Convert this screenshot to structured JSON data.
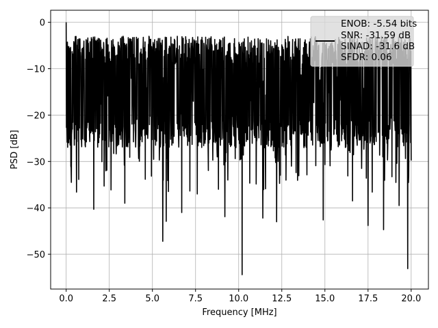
{
  "chart_data": {
    "type": "line",
    "title": "",
    "xlabel": "Frequency [MHz]",
    "ylabel": "PSD [dB]",
    "xlim": [
      -0.9,
      21.0
    ],
    "ylim": [
      -57.5,
      2.6
    ],
    "xticks": [
      0.0,
      2.5,
      5.0,
      7.5,
      10.0,
      12.5,
      15.0,
      17.5,
      20.0
    ],
    "xtick_labels": [
      "0.0",
      "2.5",
      "5.0",
      "7.5",
      "10.0",
      "12.5",
      "15.0",
      "17.5",
      "20.0"
    ],
    "yticks": [
      0,
      -10,
      -20,
      -30,
      -40,
      -50
    ],
    "ytick_labels": [
      "0",
      "−10",
      "−20",
      "−30",
      "−40",
      "−50"
    ],
    "grid": true,
    "legend_position": "top-right",
    "series": [
      {
        "name": "ENOB: -5.54 bits\nSNR: -31.59 dB\nSINAD: -31.6 dB\nSFDR: 0.06",
        "color": "#000000",
        "description_shape": "dense noise floor fluctuating roughly between -5 dB and -27 dB across 0-20 MHz",
        "x_range": [
          0.0,
          20.0
        ],
        "upper_envelope_approx": -3,
        "lower_envelope_approx": -27,
        "peak": {
          "x": 0.0,
          "y": 0.0
        },
        "notable_dips": [
          {
            "x": 0.3,
            "y": -34.5
          },
          {
            "x": 0.6,
            "y": -36.6
          },
          {
            "x": 1.6,
            "y": -40.3
          },
          {
            "x": 2.2,
            "y": -35.3
          },
          {
            "x": 3.4,
            "y": -39.0
          },
          {
            "x": 5.6,
            "y": -47.2
          },
          {
            "x": 5.8,
            "y": -42.9
          },
          {
            "x": 6.7,
            "y": -41.0
          },
          {
            "x": 7.6,
            "y": -37.0
          },
          {
            "x": 9.2,
            "y": -41.9
          },
          {
            "x": 10.2,
            "y": -54.4
          },
          {
            "x": 11.4,
            "y": -42.2
          },
          {
            "x": 12.2,
            "y": -43.0
          },
          {
            "x": 14.9,
            "y": -42.6
          },
          {
            "x": 16.6,
            "y": -38.5
          },
          {
            "x": 17.5,
            "y": -43.8
          },
          {
            "x": 18.4,
            "y": -44.7
          },
          {
            "x": 19.3,
            "y": -39.5
          },
          {
            "x": 19.8,
            "y": -53.1
          }
        ]
      }
    ],
    "legend": {
      "lines": [
        "ENOB: -5.54 bits",
        "SNR: -31.59 dB",
        "SINAD: -31.6 dB",
        "SFDR: 0.06"
      ]
    }
  }
}
